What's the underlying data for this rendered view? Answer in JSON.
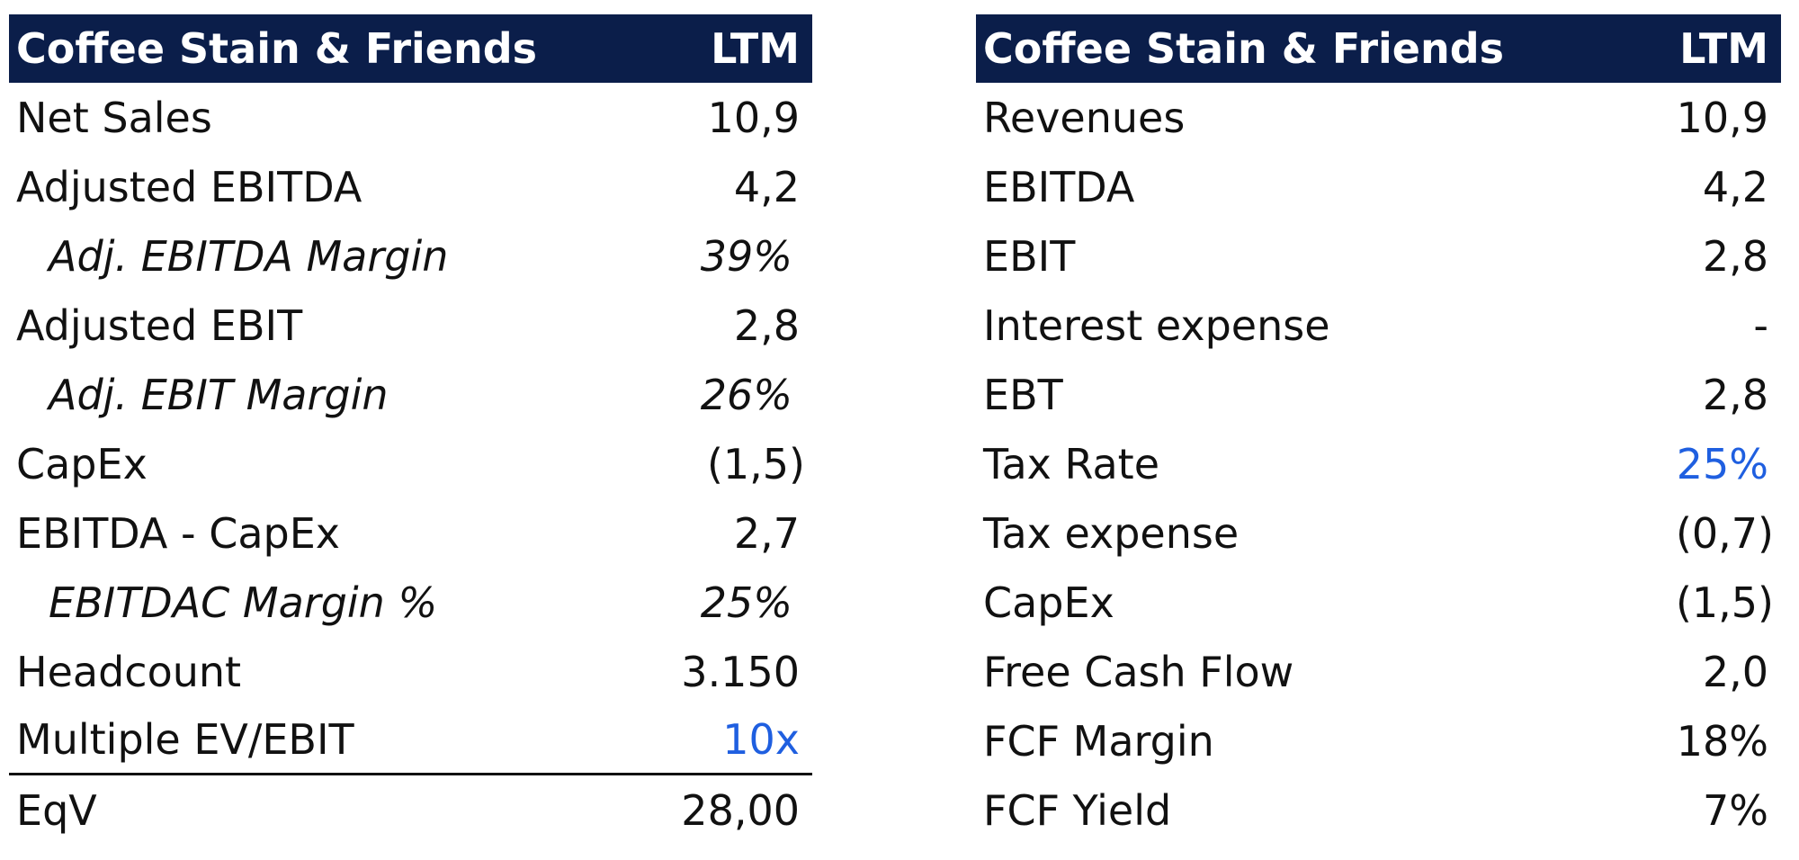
{
  "left_table": {
    "header": {
      "title": "Coffee Stain & Friends",
      "period": "LTM"
    },
    "rows": [
      {
        "label": "Net Sales",
        "value": "10,9"
      },
      {
        "label": "Adjusted EBITDA",
        "value": "4,2"
      },
      {
        "label": "Adj. EBITDA Margin",
        "value": "39%"
      },
      {
        "label": "Adjusted EBIT",
        "value": "2,8"
      },
      {
        "label": "Adj. EBIT Margin",
        "value": "26%"
      },
      {
        "label": "CapEx",
        "value": "(1,5)"
      },
      {
        "label": "EBITDA - CapEx",
        "value": "2,7"
      },
      {
        "label": "EBITDAC Margin %",
        "value": "25%"
      },
      {
        "label": "Headcount",
        "value": "3.150"
      },
      {
        "label": "Multiple EV/EBIT",
        "value": "10x"
      },
      {
        "label": "EqV",
        "value": "28,00"
      }
    ]
  },
  "right_table": {
    "header": {
      "title": "Coffee Stain & Friends",
      "period": "LTM"
    },
    "rows": [
      {
        "label": "Revenues",
        "value": "10,9"
      },
      {
        "label": "EBITDA",
        "value": "4,2"
      },
      {
        "label": "EBIT",
        "value": "2,8"
      },
      {
        "label": "Interest expense",
        "value": "-"
      },
      {
        "label": "EBT",
        "value": "2,8"
      },
      {
        "label": "Tax Rate",
        "value": "25%"
      },
      {
        "label": "Tax expense",
        "value": "(0,7)"
      },
      {
        "label": "CapEx",
        "value": "(1,5)"
      },
      {
        "label": "Free Cash Flow",
        "value": "2,0"
      },
      {
        "label": "FCF Margin",
        "value": "18%"
      },
      {
        "label": "FCF Yield",
        "value": "7%"
      }
    ]
  },
  "colors": {
    "header_bg": "#0b1e4a",
    "header_text": "#ffffff",
    "input_blue": "#1f5fe0",
    "text": "#111111"
  }
}
